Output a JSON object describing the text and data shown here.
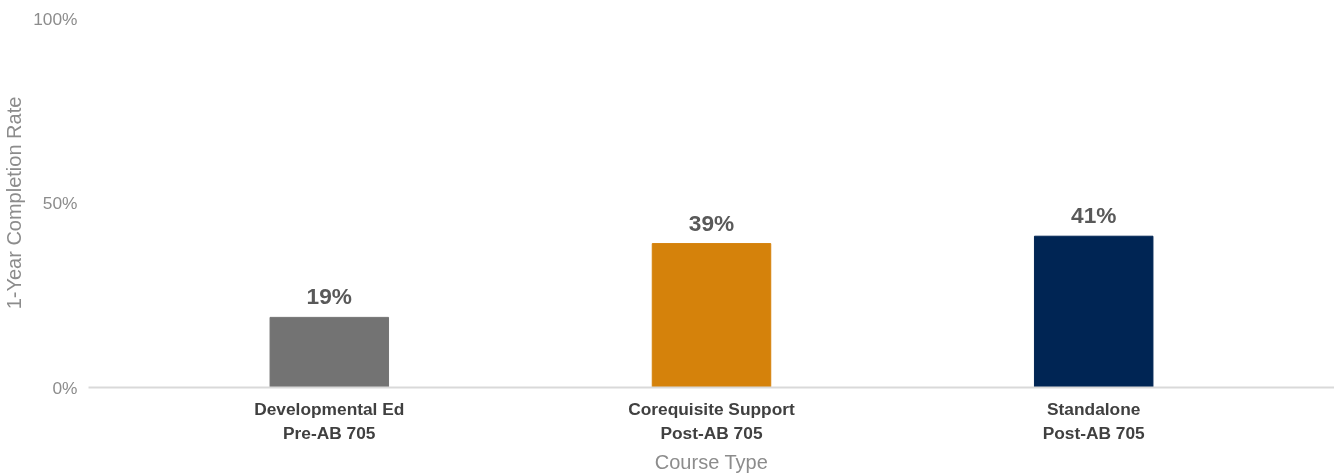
{
  "chart_data": {
    "type": "bar",
    "xlabel": "Course Type",
    "ylabel": "1-Year Completion Rate",
    "categories": [
      "Developmental Ed\nPre-AB 705",
      "Corequisite Support\nPost-AB 705",
      "Standalone\nPost-AB 705"
    ],
    "values": [
      19,
      39,
      41
    ],
    "colors": [
      "#737373",
      "#d5820b",
      "#002554"
    ],
    "value_labels": [
      "19%",
      "39%",
      "41%"
    ],
    "ylim": [
      0,
      100
    ],
    "yticks": [
      {
        "value": 0,
        "label": "0%"
      },
      {
        "value": 50,
        "label": "50%"
      },
      {
        "value": 100,
        "label": "100%"
      }
    ],
    "grid": false
  }
}
